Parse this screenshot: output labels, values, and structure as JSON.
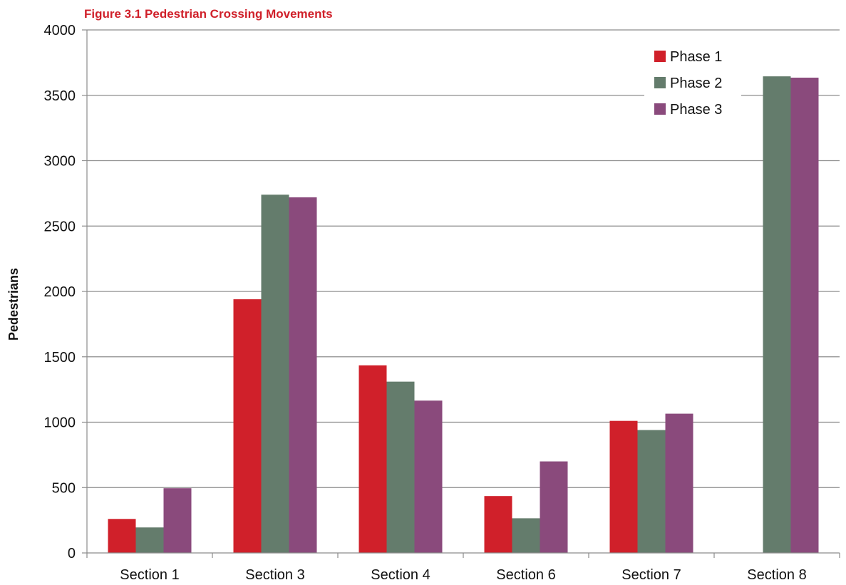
{
  "figure_title": "Figure 3.1 Pedestrian Crossing Movements",
  "chart_data": {
    "type": "bar",
    "title": "Figure 3.1 Pedestrian Crossing Movements",
    "xlabel": "",
    "ylabel": "Pedestrians",
    "categories": [
      "Section 1",
      "Section 3",
      "Section 4",
      "Section 6",
      "Section 7",
      "Section 8"
    ],
    "series": [
      {
        "name": "Phase 1",
        "color": "#d0202a",
        "values": [
          260,
          1940,
          1435,
          435,
          1010,
          0
        ]
      },
      {
        "name": "Phase 2",
        "color": "#647c6c",
        "values": [
          195,
          2740,
          1310,
          265,
          940,
          3645
        ]
      },
      {
        "name": "Phase 3",
        "color": "#8a4a7c",
        "values": [
          495,
          2720,
          1165,
          700,
          1065,
          3635
        ]
      }
    ],
    "ylim": [
      0,
      4000
    ],
    "yticks": [
      0,
      500,
      1000,
      1500,
      2000,
      2500,
      3000,
      3500,
      4000
    ],
    "grid": true,
    "legend_position": "top-right"
  }
}
